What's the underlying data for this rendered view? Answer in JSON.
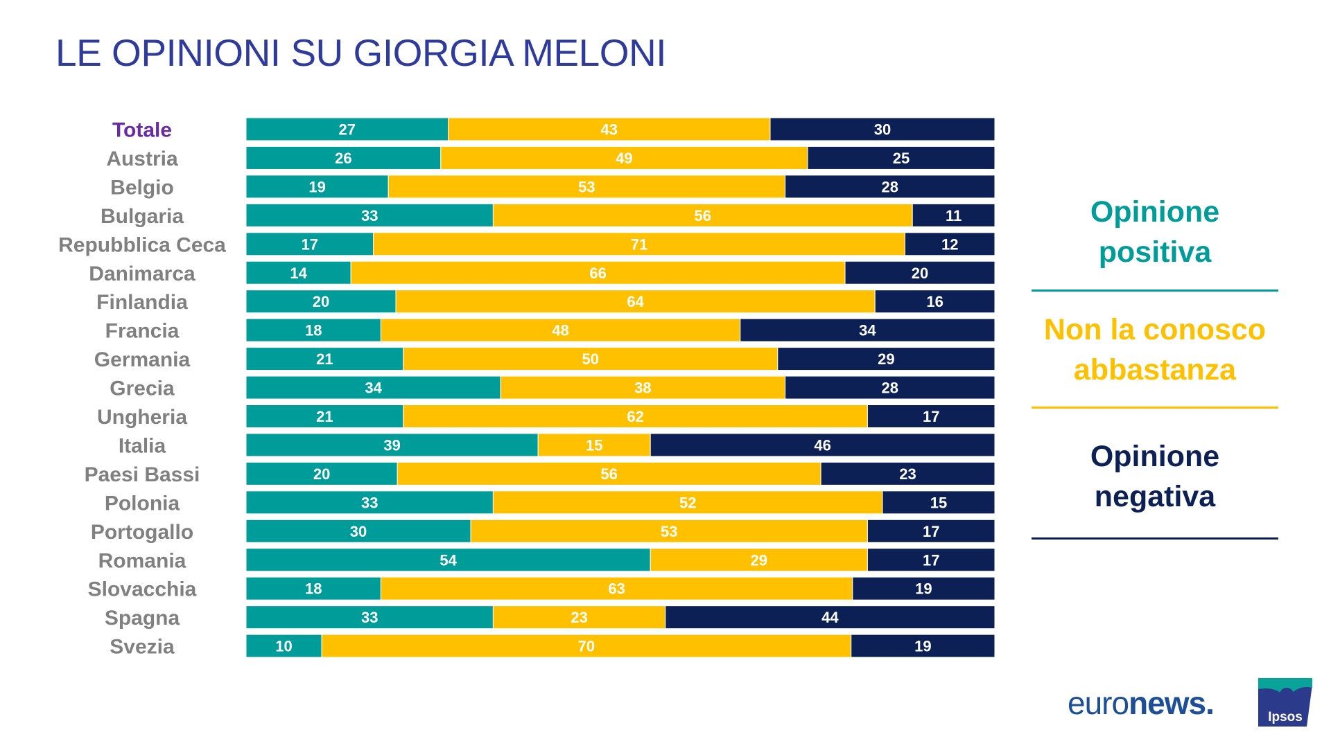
{
  "title": "LE OPINIONI SU GIORGIA MELONI",
  "colors": {
    "positive": "#009c99",
    "unknown": "#ffc000",
    "negative": "#0c2055",
    "title": "#2e3b9c",
    "total_label": "#6a2aa6",
    "country_label": "#808080"
  },
  "legend": {
    "positive": [
      "Opinione",
      "positiva"
    ],
    "unknown": [
      "Non la conosco",
      "abbastanza"
    ],
    "negative": [
      "Opinione",
      "negativa"
    ]
  },
  "logos": {
    "euronews_light": "euro",
    "euronews_bold": "news",
    "ipsos": "Ipsos"
  },
  "chart_data": {
    "type": "bar",
    "orientation": "horizontal",
    "stacked": true,
    "categories": [
      "Totale",
      "Austria",
      "Belgio",
      "Bulgaria",
      "Repubblica Ceca",
      "Danimarca",
      "Finlandia",
      "Francia",
      "Germania",
      "Grecia",
      "Ungheria",
      "Italia",
      "Paesi Bassi",
      "Polonia",
      "Portogallo",
      "Romania",
      "Slovacchia",
      "Spagna",
      "Svezia"
    ],
    "series": [
      {
        "name": "Opinione positiva",
        "color": "#009c99",
        "values": [
          27,
          26,
          19,
          33,
          17,
          14,
          20,
          18,
          21,
          34,
          21,
          39,
          20,
          33,
          30,
          54,
          18,
          33,
          10
        ]
      },
      {
        "name": "Non la conosco abbastanza",
        "color": "#ffc000",
        "values": [
          43,
          49,
          53,
          56,
          71,
          66,
          64,
          48,
          50,
          38,
          62,
          15,
          56,
          52,
          53,
          29,
          63,
          23,
          70
        ]
      },
      {
        "name": "Opinione negativa",
        "color": "#0c2055",
        "values": [
          30,
          25,
          28,
          11,
          12,
          20,
          16,
          34,
          29,
          28,
          17,
          46,
          23,
          15,
          17,
          17,
          19,
          44,
          19
        ]
      }
    ],
    "xlim": [
      0,
      100
    ],
    "grid": false,
    "legend_position": "right"
  }
}
